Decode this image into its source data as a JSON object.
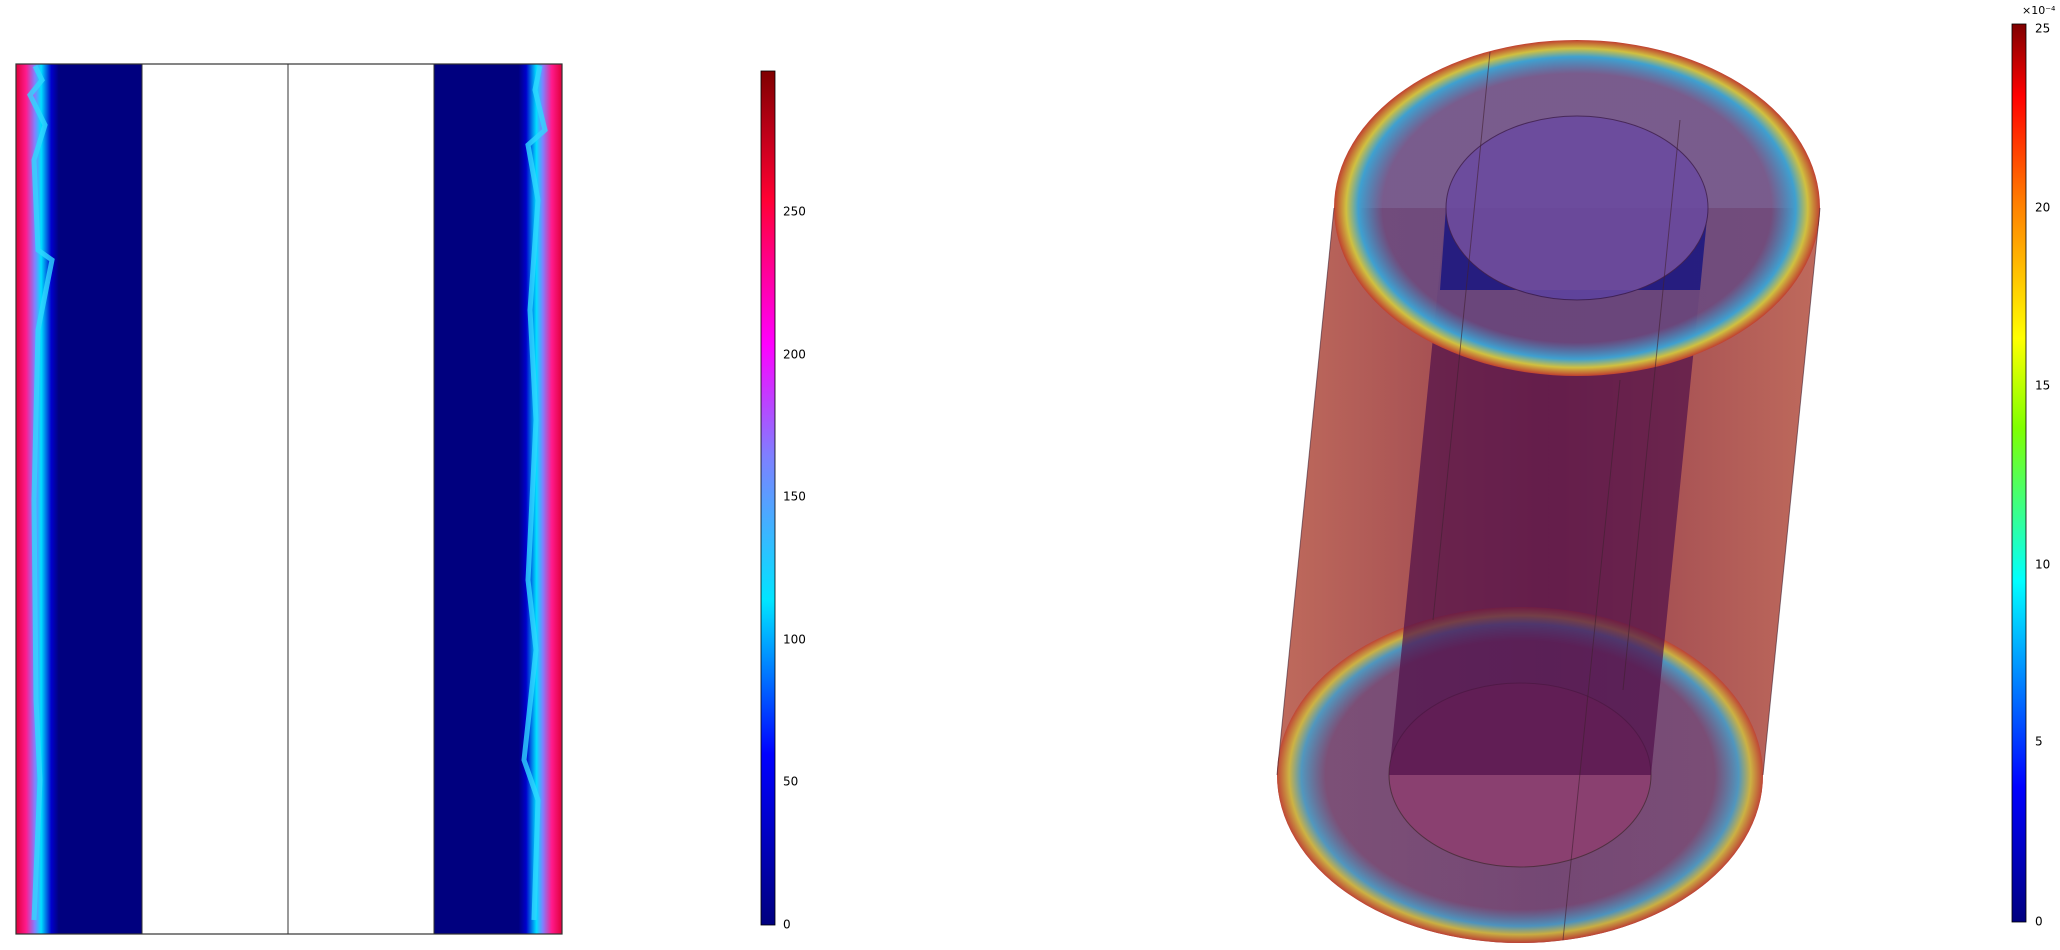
{
  "left_colorbar": {
    "ticks": [
      0,
      50,
      100,
      150,
      200,
      250
    ]
  },
  "right_colorbar": {
    "exponent": "×10⁻⁴",
    "ticks": [
      0,
      5,
      10,
      15,
      20,
      25
    ]
  }
}
